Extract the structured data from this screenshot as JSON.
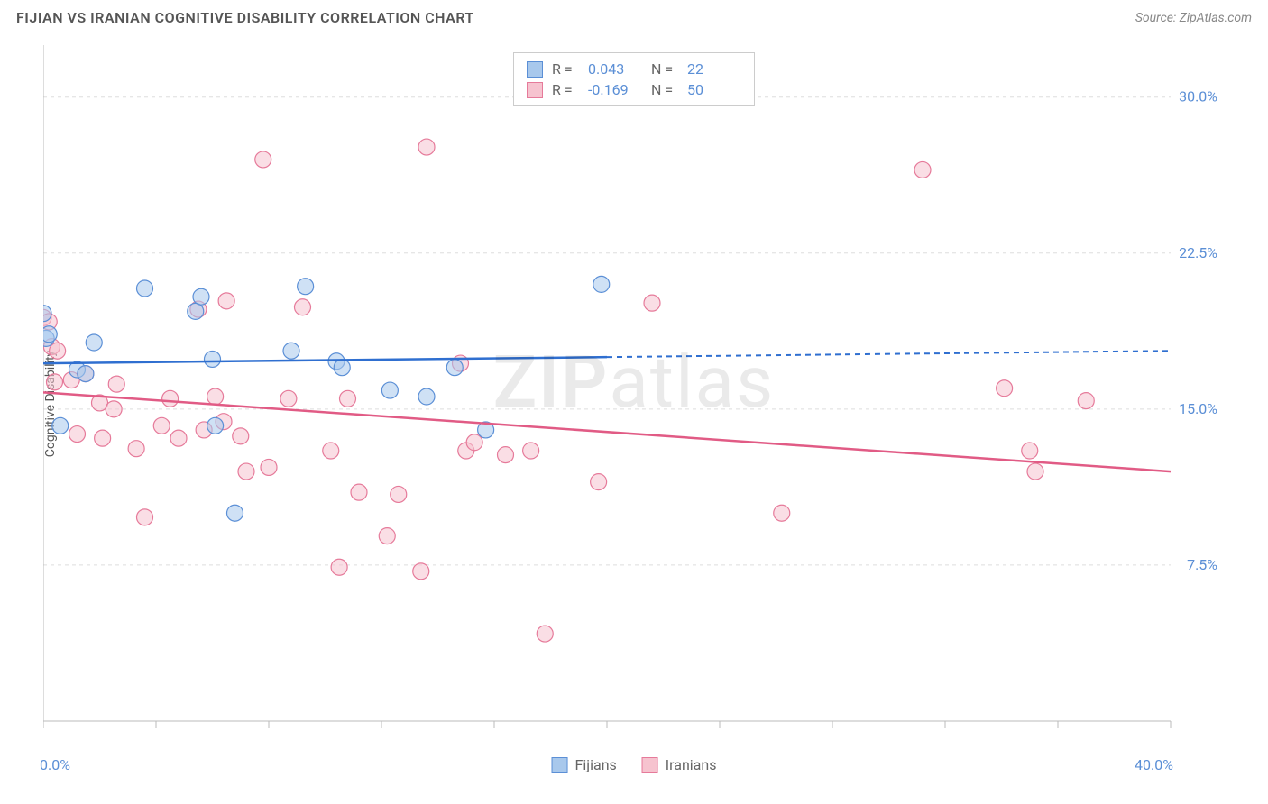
{
  "header": {
    "title": "FIJIAN VS IRANIAN COGNITIVE DISABILITY CORRELATION CHART",
    "source": "Source: ZipAtlas.com"
  },
  "ylabel": "Cognitive Disability",
  "watermark_bold": "ZIP",
  "watermark_rest": "atlas",
  "xlim": [
    0,
    40
  ],
  "ylim": [
    0,
    32.5
  ],
  "yticks": [
    {
      "v": 7.5,
      "label": "7.5%"
    },
    {
      "v": 15.0,
      "label": "15.0%"
    },
    {
      "v": 22.5,
      "label": "22.5%"
    },
    {
      "v": 30.0,
      "label": "30.0%"
    }
  ],
  "xtick_positions": [
    0,
    4,
    8,
    12,
    16,
    20,
    24,
    28,
    32,
    36,
    40
  ],
  "xtick_labels": [
    {
      "v": 0,
      "label": "0.0%"
    },
    {
      "v": 40,
      "label": "40.0%"
    }
  ],
  "colors": {
    "fijian_fill": "#a8c8ec",
    "fijian_stroke": "#5b8fd6",
    "iranian_fill": "#f6c3cf",
    "iranian_stroke": "#e67a9a",
    "trend_fijian": "#2f6fd0",
    "trend_iranian": "#e15b85",
    "grid": "#dddddd",
    "axis": "#bbbbbb",
    "tick_text": "#5b8fd6"
  },
  "marker_radius": 9,
  "marker_opacity": 0.55,
  "legend_top": {
    "rows": [
      {
        "swatch": "fijian",
        "R": "0.043",
        "N": "22"
      },
      {
        "swatch": "iranian",
        "R": "-0.169",
        "N": "50"
      }
    ],
    "r_label": "R =",
    "n_label": "N ="
  },
  "legend_bottom": {
    "items": [
      {
        "swatch": "fijian",
        "label": "Fijians"
      },
      {
        "swatch": "iranian",
        "label": "Iranians"
      }
    ]
  },
  "trend_lines": {
    "fijian": {
      "x1": 0,
      "y1": 17.2,
      "x2_solid": 20,
      "y2_solid": 17.5,
      "x2": 40,
      "y2": 17.8
    },
    "iranian": {
      "x1": 0,
      "y1": 15.8,
      "x2": 40,
      "y2": 12.0
    }
  },
  "series": {
    "fijian": [
      [
        0.0,
        19.6
      ],
      [
        0.1,
        18.4
      ],
      [
        0.2,
        18.6
      ],
      [
        0.6,
        14.2
      ],
      [
        1.2,
        16.9
      ],
      [
        1.5,
        16.7
      ],
      [
        1.8,
        18.2
      ],
      [
        3.6,
        20.8
      ],
      [
        5.4,
        19.7
      ],
      [
        5.6,
        20.4
      ],
      [
        6.0,
        17.4
      ],
      [
        6.1,
        14.2
      ],
      [
        6.8,
        10.0
      ],
      [
        8.8,
        17.8
      ],
      [
        9.3,
        20.9
      ],
      [
        10.4,
        17.3
      ],
      [
        10.6,
        17.0
      ],
      [
        12.3,
        15.9
      ],
      [
        13.6,
        15.6
      ],
      [
        14.6,
        17.0
      ],
      [
        15.7,
        14.0
      ],
      [
        19.8,
        21.0
      ]
    ],
    "iranian": [
      [
        0.0,
        19.4
      ],
      [
        0.2,
        19.2
      ],
      [
        0.3,
        18.0
      ],
      [
        0.4,
        16.3
      ],
      [
        0.5,
        17.8
      ],
      [
        1.0,
        16.4
      ],
      [
        1.2,
        13.8
      ],
      [
        1.5,
        16.7
      ],
      [
        2.0,
        15.3
      ],
      [
        2.1,
        13.6
      ],
      [
        2.5,
        15.0
      ],
      [
        2.6,
        16.2
      ],
      [
        3.3,
        13.1
      ],
      [
        3.6,
        9.8
      ],
      [
        4.2,
        14.2
      ],
      [
        4.5,
        15.5
      ],
      [
        4.8,
        13.6
      ],
      [
        5.5,
        19.8
      ],
      [
        5.7,
        14.0
      ],
      [
        6.1,
        15.6
      ],
      [
        6.4,
        14.4
      ],
      [
        6.5,
        20.2
      ],
      [
        7.0,
        13.7
      ],
      [
        7.2,
        12.0
      ],
      [
        7.8,
        27.0
      ],
      [
        8.0,
        12.2
      ],
      [
        8.7,
        15.5
      ],
      [
        9.2,
        19.9
      ],
      [
        10.2,
        13.0
      ],
      [
        10.5,
        7.4
      ],
      [
        10.8,
        15.5
      ],
      [
        11.2,
        11.0
      ],
      [
        12.2,
        8.9
      ],
      [
        12.6,
        10.9
      ],
      [
        13.4,
        7.2
      ],
      [
        13.6,
        27.6
      ],
      [
        14.8,
        17.2
      ],
      [
        15.0,
        13.0
      ],
      [
        15.3,
        13.4
      ],
      [
        16.4,
        12.8
      ],
      [
        17.3,
        13.0
      ],
      [
        17.8,
        4.2
      ],
      [
        19.7,
        11.5
      ],
      [
        21.6,
        20.1
      ],
      [
        26.2,
        10.0
      ],
      [
        31.2,
        26.5
      ],
      [
        34.1,
        16.0
      ],
      [
        35.0,
        13.0
      ],
      [
        35.2,
        12.0
      ],
      [
        37.0,
        15.4
      ]
    ]
  }
}
